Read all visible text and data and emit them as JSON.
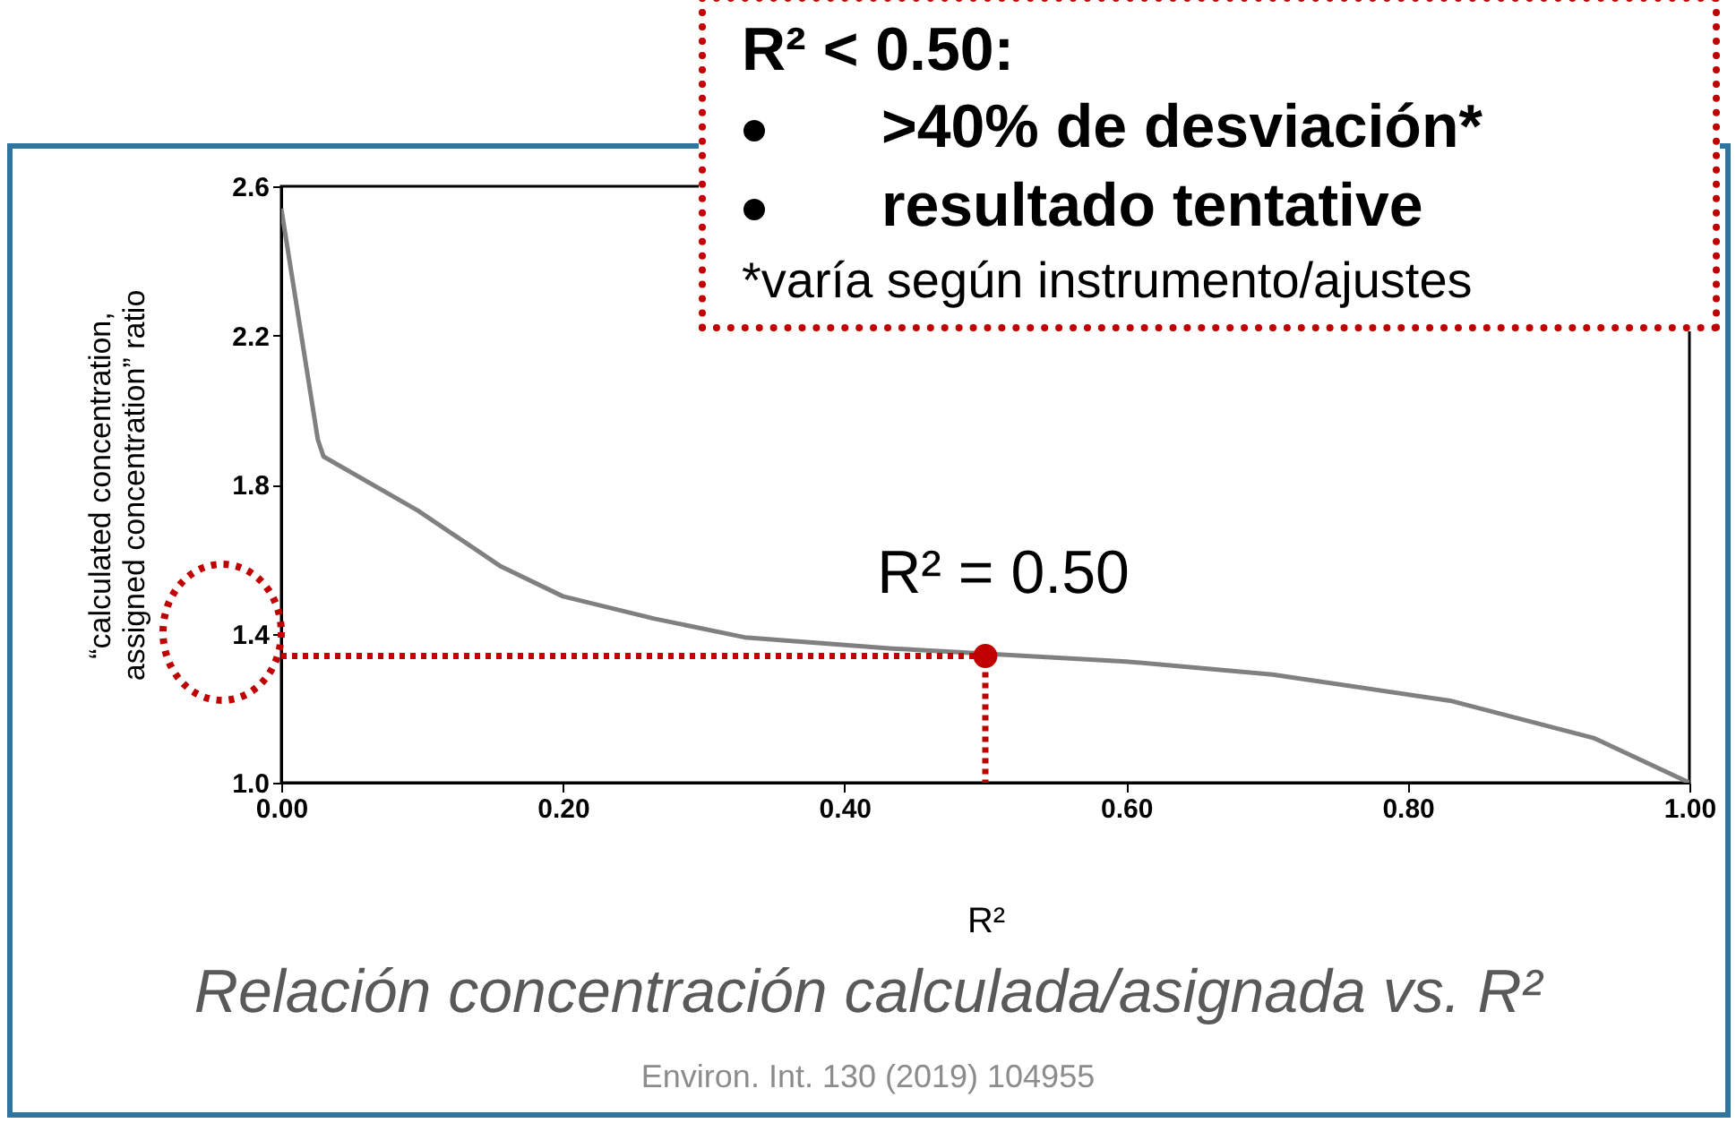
{
  "chart_data": {
    "type": "line",
    "title": "Relación concentración calculada/asignada vs. R²",
    "xlabel": "R²",
    "ylabel": "“calculated concentration,\nassigned concentration” ratio",
    "xlim": [
      0,
      1
    ],
    "ylim": [
      1,
      2.6
    ],
    "xticks": [
      {
        "value": 0,
        "label": "0.00"
      },
      {
        "value": 0.2,
        "label": "0.20"
      },
      {
        "value": 0.4,
        "label": "0.40"
      },
      {
        "value": 0.6,
        "label": "0.60"
      },
      {
        "value": 0.8,
        "label": "0.80"
      },
      {
        "value": 1,
        "label": "1.00"
      }
    ],
    "yticks": [
      {
        "value": 1,
        "label": "1.0"
      },
      {
        "value": 1.4,
        "label": "1.4"
      },
      {
        "value": 1.8,
        "label": "1.8"
      },
      {
        "value": 2.2,
        "label": "2.2"
      },
      {
        "value": 2.6,
        "label": "2.6"
      }
    ],
    "series": [
      {
        "color": "#808080",
        "x": [
          0,
          0.026,
          0.03,
          0.097,
          0.156,
          0.2,
          0.265,
          0.329,
          0.434,
          0.6,
          0.704,
          0.83,
          0.932,
          1
        ],
        "values": [
          2.54,
          1.92,
          1.875,
          1.73,
          1.58,
          1.5,
          1.44,
          1.39,
          1.36,
          1.325,
          1.29,
          1.22,
          1.12,
          1.0
        ]
      },
      {
        "type": "line",
        "line_style": "dotted",
        "color": "#c00000",
        "x": [
          0,
          0.5,
          0.5
        ],
        "values": [
          1.34,
          1.34,
          1.0
        ]
      },
      {
        "type": "scatter",
        "color": "#c00000",
        "x": [
          0.5
        ],
        "values": [
          1.34
        ]
      }
    ],
    "annotations": [
      {
        "text": "R² = 0.50",
        "x": 0.5,
        "y": 1.34
      },
      "R² < 0.50:",
      ">40% de desviación*",
      "resultado tentative",
      "*varía según instrumento/ajustes",
      "Environ. Int. 130 (2019) 104955"
    ]
  }
}
